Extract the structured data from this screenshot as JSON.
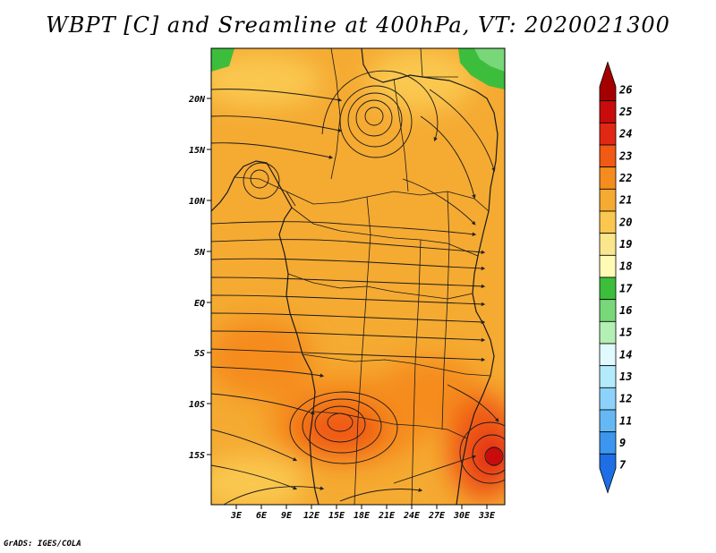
{
  "title": "WBPT [C] and Sreamline at 400hPa, VT: 2020021300",
  "credit": "GrADS: IGES/COLA",
  "map": {
    "variable": "WBPT [C]",
    "overlay": "Streamline",
    "level": "400hPa",
    "valid_time": "2020021300",
    "lat_labels": [
      "20N",
      "15N",
      "10N",
      "5N",
      "EQ",
      "5S",
      "10S",
      "15S"
    ],
    "lon_labels": [
      "3E",
      "6E",
      "9E",
      "12E",
      "15E",
      "18E",
      "21E",
      "24E",
      "27E",
      "30E",
      "33E"
    ]
  },
  "colorbar": {
    "levels": [
      "26",
      "25",
      "24",
      "23",
      "22",
      "21",
      "20",
      "19",
      "18",
      "17",
      "16",
      "15",
      "14",
      "13",
      "12",
      "11",
      "9",
      "7"
    ],
    "colors": [
      "#a50000",
      "#c80c0c",
      "#e12814",
      "#f05a14",
      "#f58c1e",
      "#f5aa32",
      "#fac850",
      "#fae68c",
      "#fffab4",
      "#3cbe3c",
      "#78d778",
      "#b4f0b4",
      "#e1faff",
      "#b4ebfa",
      "#8cd2fa",
      "#64b9f5",
      "#3c96f0",
      "#1e6ee6"
    ]
  }
}
